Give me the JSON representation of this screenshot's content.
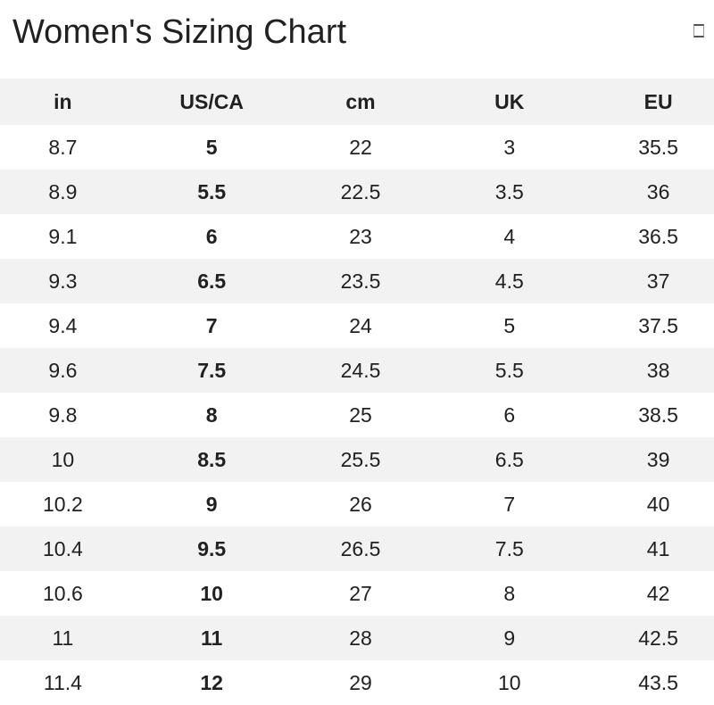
{
  "header": {
    "title": "Women's Sizing Chart",
    "corner_icon": "empty-box-glyph"
  },
  "table": {
    "columns": [
      "in",
      "US/CA",
      "cm",
      "UK",
      "EU"
    ],
    "bold_column_index": 1,
    "rows": [
      [
        "8.7",
        "5",
        "22",
        "3",
        "35.5"
      ],
      [
        "8.9",
        "5.5",
        "22.5",
        "3.5",
        "36"
      ],
      [
        "9.1",
        "6",
        "23",
        "4",
        "36.5"
      ],
      [
        "9.3",
        "6.5",
        "23.5",
        "4.5",
        "37"
      ],
      [
        "9.4",
        "7",
        "24",
        "5",
        "37.5"
      ],
      [
        "9.6",
        "7.5",
        "24.5",
        "5.5",
        "38"
      ],
      [
        "9.8",
        "8",
        "25",
        "6",
        "38.5"
      ],
      [
        "10",
        "8.5",
        "25.5",
        "6.5",
        "39"
      ],
      [
        "10.2",
        "9",
        "26",
        "7",
        "40"
      ],
      [
        "10.4",
        "9.5",
        "26.5",
        "7.5",
        "41"
      ],
      [
        "10.6",
        "10",
        "27",
        "8",
        "42"
      ],
      [
        "11",
        "11",
        "28",
        "9",
        "42.5"
      ],
      [
        "11.4",
        "12",
        "29",
        "10",
        "43.5"
      ]
    ]
  },
  "colors": {
    "text": "#212121",
    "stripe": "#f2f2f2",
    "background": "#ffffff"
  }
}
